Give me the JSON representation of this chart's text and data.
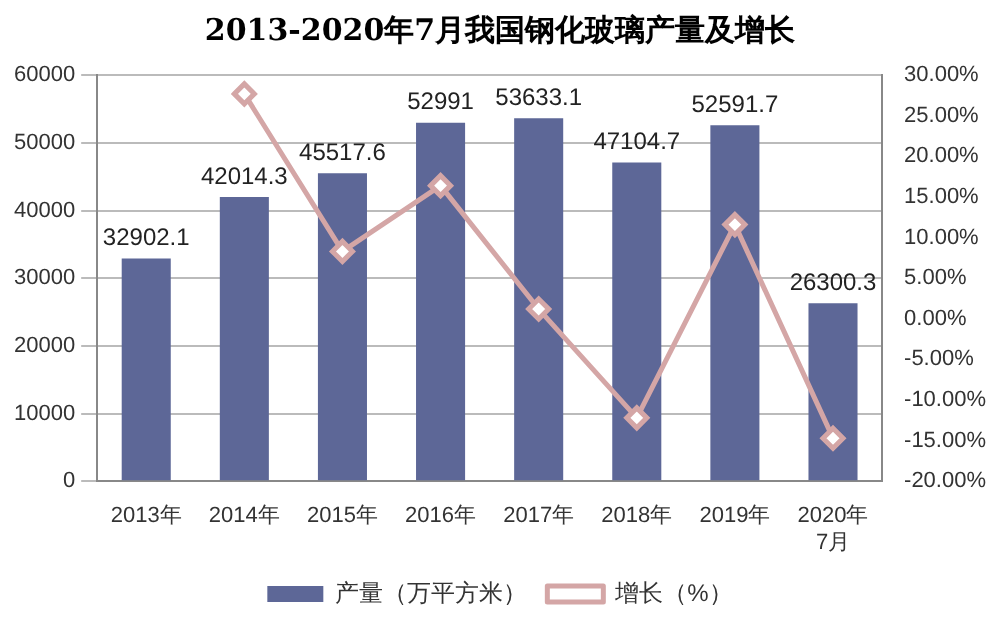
{
  "chart_data": {
    "type": "bar",
    "title": "2013-2020年7月我国钢化玻璃产量及增长",
    "categories": [
      "2013年",
      "2014年",
      "2015年",
      "2016年",
      "2017年",
      "2018年",
      "2019年",
      "2020年7月"
    ],
    "series": [
      {
        "name": "产量（万平方米）",
        "color": "#5d6797",
        "values": [
          32902.1,
          42014.3,
          45517.6,
          52991,
          53633.1,
          47104.7,
          52591.7,
          26300.3
        ],
        "value_labels": [
          "32902.1",
          "42014.3",
          "45517.6",
          "52991",
          "53633.1",
          "47104.7",
          "52591.7",
          "26300.3"
        ]
      },
      {
        "name": "增长（%）",
        "type": "line",
        "axis": "y2",
        "color": "#d4a6a6",
        "marker": "diamond",
        "values": [
          null,
          27.7,
          8.3,
          16.4,
          1.2,
          -12.2,
          11.6,
          -14.7
        ]
      }
    ],
    "ylim": [
      0,
      60000
    ],
    "yticks": [
      0,
      10000,
      20000,
      30000,
      40000,
      50000,
      60000
    ],
    "y2lim": [
      -20,
      30
    ],
    "y2ticks": [
      {
        "value": -20,
        "label": "-20.00%"
      },
      {
        "value": -15,
        "label": "-15.00%"
      },
      {
        "value": -10,
        "label": "-10.00%"
      },
      {
        "value": -5,
        "label": "-5.00%"
      },
      {
        "value": 0,
        "label": "0.00%"
      },
      {
        "value": 5,
        "label": "5.00%"
      },
      {
        "value": 10,
        "label": "10.00%"
      },
      {
        "value": 15,
        "label": "15.00%"
      },
      {
        "value": 20,
        "label": "20.00%"
      },
      {
        "value": 25,
        "label": "25.00%"
      },
      {
        "value": 30,
        "label": "30.00%"
      }
    ],
    "grid": "y",
    "legend": "bottom"
  }
}
